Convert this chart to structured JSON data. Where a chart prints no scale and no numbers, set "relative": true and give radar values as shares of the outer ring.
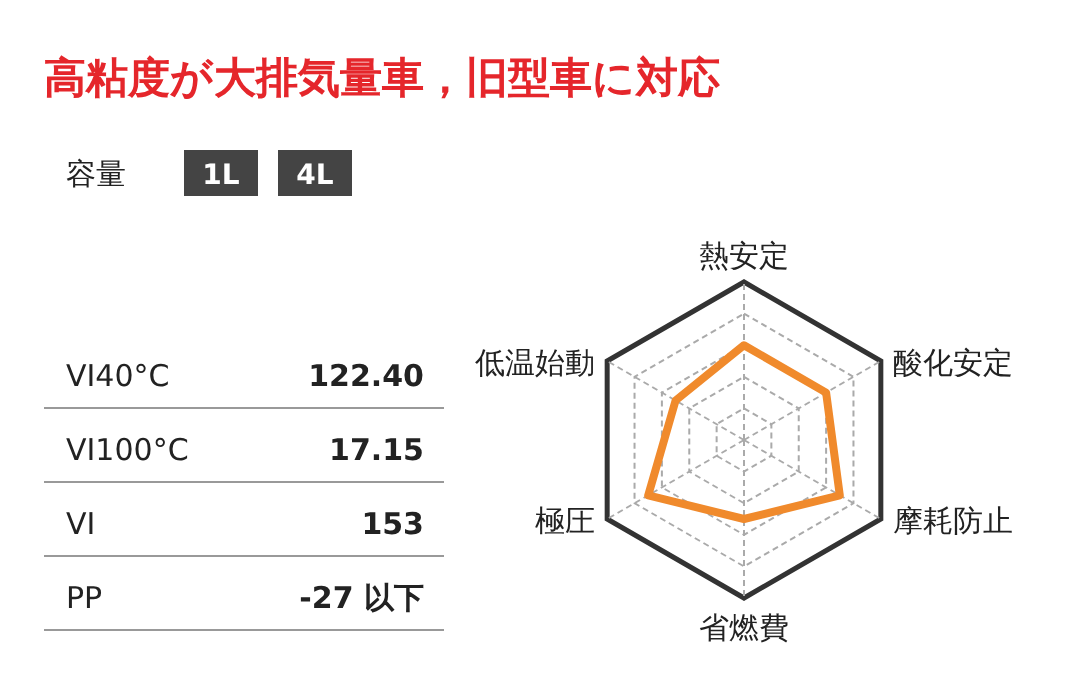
{
  "chart_data": {
    "type": "radar",
    "title": "高粘度が大排気量車，旧型車に対応",
    "categories": [
      "熱安定",
      "酸化安定",
      "摩耗防止",
      "省燃費",
      "極圧",
      "低温始動"
    ],
    "series": [
      {
        "color": "#f08a2c",
        "values": [
          0.6,
          0.6,
          0.7,
          0.5,
          0.7,
          0.5
        ]
      }
    ],
    "relative": true,
    "annotations": [
      "容量",
      "1L",
      "4L",
      "VI40°C",
      "122.40",
      "VI100°C",
      "17.15",
      "VI",
      "153",
      "PP",
      "-27 以下"
    ]
  }
}
